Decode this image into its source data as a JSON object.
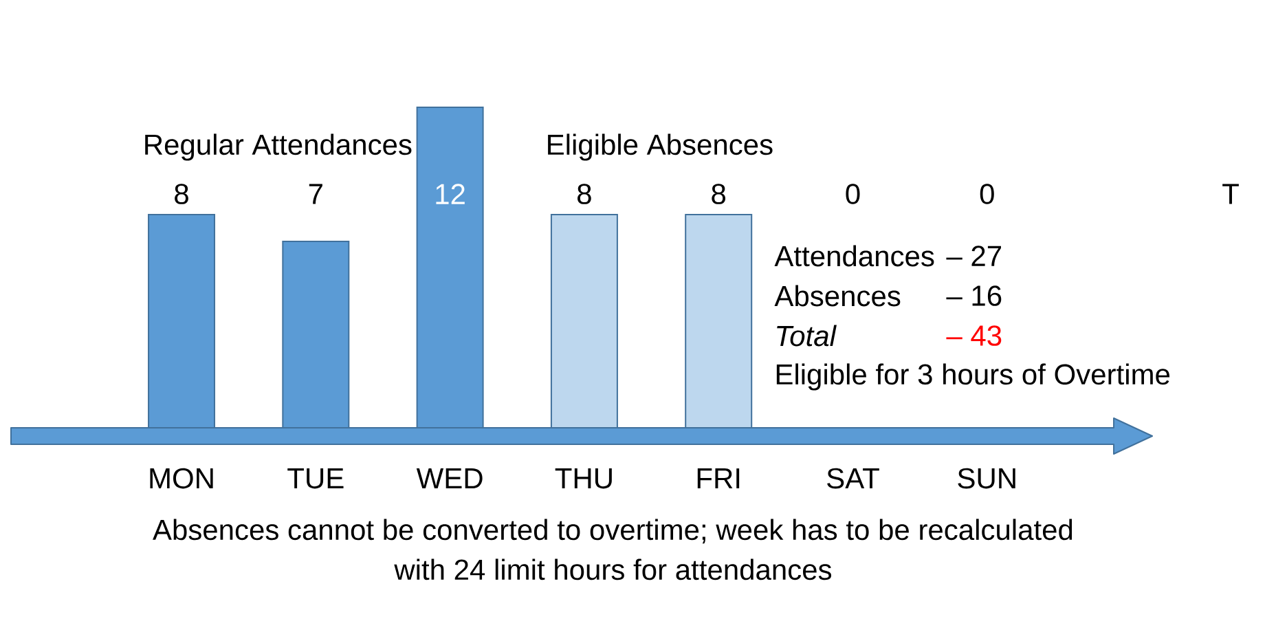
{
  "chart_data": {
    "type": "bar",
    "categories": [
      "MON",
      "TUE",
      "WED",
      "THU",
      "FRI",
      "SAT",
      "SUN"
    ],
    "series": [
      {
        "name": "Regular Attendances",
        "color": "#5b9bd5",
        "values": [
          8,
          7,
          12,
          null,
          null,
          0,
          0
        ],
        "value_labels": [
          "8",
          "7",
          "12",
          null,
          null,
          null,
          null
        ]
      },
      {
        "name": "Eligible Absences",
        "color": "#bdd7ee",
        "values": [
          null,
          null,
          null,
          8,
          8,
          null,
          null
        ],
        "value_labels": [
          null,
          null,
          null,
          "8",
          "8",
          null,
          null
        ]
      }
    ],
    "annotations": [
      "0",
      "0",
      "T",
      "Attendances",
      "– 27",
      "Absences",
      "– 16",
      "*Total*",
      "– 43",
      "Eligible for 3 hours of Overtime",
      "Absences cannot be converted to overtime; week has to be recalculated with 24 limit hours for attendances"
    ]
  }
}
